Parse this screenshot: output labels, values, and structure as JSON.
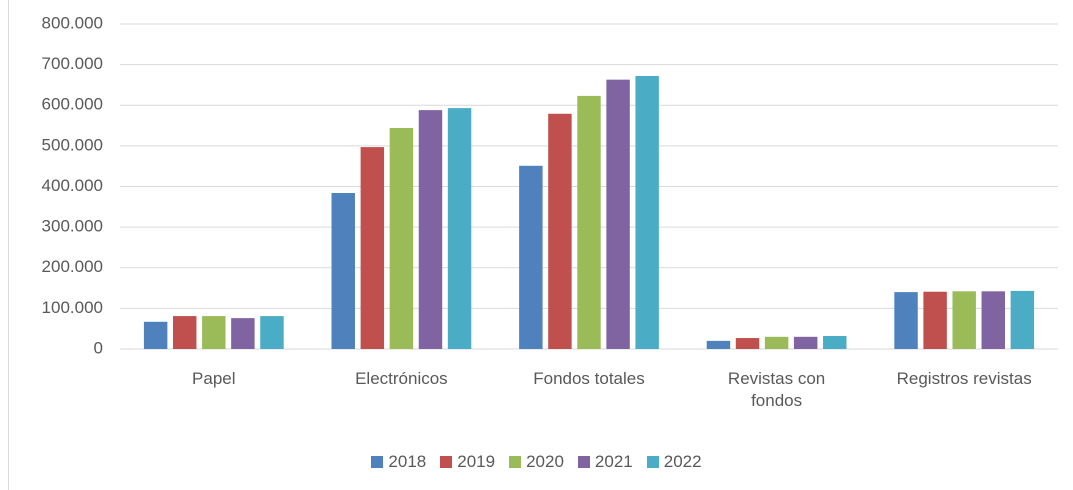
{
  "chart_data": {
    "type": "bar",
    "categories": [
      "Papel",
      "Electrónicos",
      "Fondos totales",
      "Revistas con fondos",
      "Registros revistas"
    ],
    "series": [
      {
        "name": "2018",
        "color": "#4f81bd",
        "values": [
          67000,
          384000,
          451000,
          20000,
          140000
        ]
      },
      {
        "name": "2019",
        "color": "#c0504d",
        "values": [
          81000,
          497000,
          579000,
          27000,
          141000
        ]
      },
      {
        "name": "2020",
        "color": "#9bbb59",
        "values": [
          81000,
          544000,
          623000,
          30000,
          142000
        ]
      },
      {
        "name": "2021",
        "color": "#8064a2",
        "values": [
          76000,
          588000,
          663000,
          30000,
          142000
        ]
      },
      {
        "name": "2022",
        "color": "#4bacc6",
        "values": [
          81000,
          593000,
          672000,
          32000,
          143000
        ]
      }
    ],
    "ylim": [
      0,
      800000
    ],
    "yticks": [
      0,
      {
        "value": 100000,
        "label": "100.000"
      },
      {
        "value": 200000,
        "label": "200.000"
      },
      {
        "value": 300000,
        "label": "300.000"
      },
      {
        "value": 400000,
        "label": "400.000"
      },
      {
        "value": 500000,
        "label": "500.000"
      },
      {
        "value": 600000,
        "label": "600.000"
      },
      {
        "value": 700000,
        "label": "700.000"
      },
      {
        "value": 800000,
        "label": "800.000"
      }
    ],
    "grid": true,
    "legend": "bottom"
  }
}
